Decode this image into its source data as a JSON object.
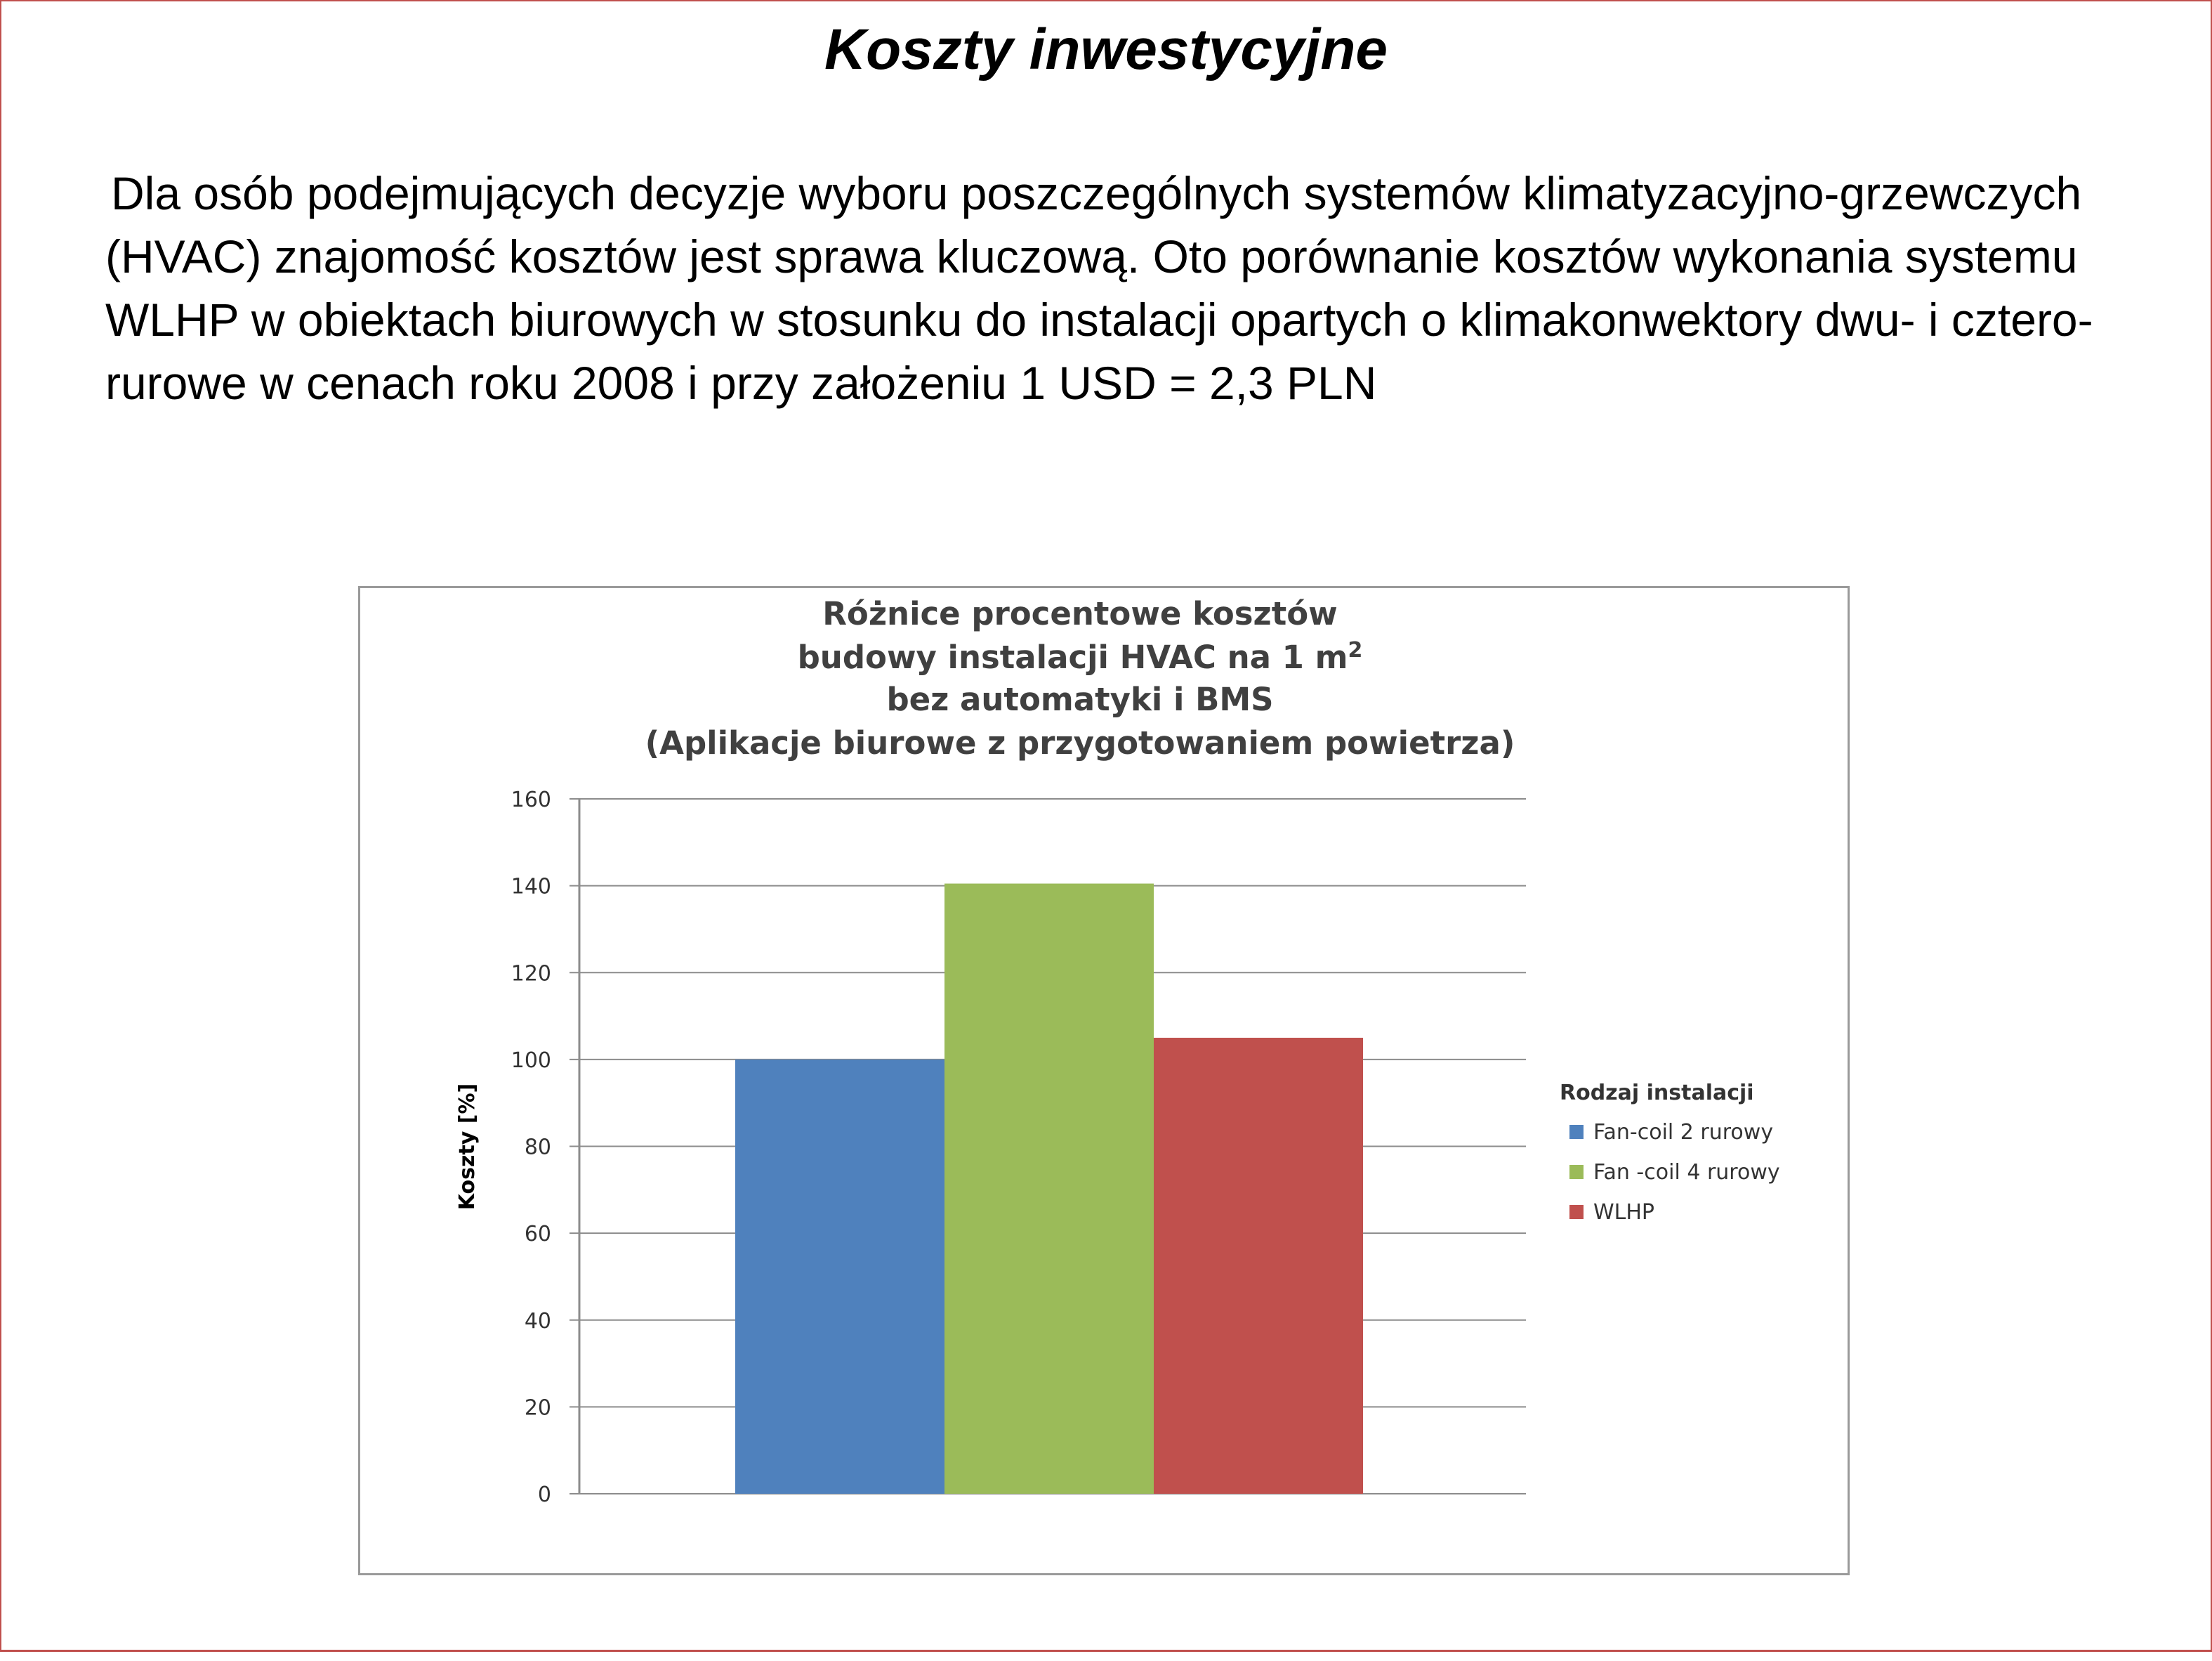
{
  "slide": {
    "title": "Koszty inwestycyjne",
    "body": "Dla osób podejmujących decyzje wyboru poszczególnych systemów klimatyzacyjno-grzewczych (HVAC) znajomość kosztów jest sprawa kluczową. Oto porównanie kosztów wykonania systemu WLHP w obiektach biurowych w stosunku do instalacji opartych o klimakonwektory dwu- i cztero-rurowe w cenach roku 2008 i przy założeniu 1 USD = 2,3 PLN"
  },
  "chart_data": {
    "type": "bar",
    "title_lines": [
      "Różnice procentowe kosztów",
      "budowy instalacji HVAC na 1 m",
      "bez automatyki  i BMS",
      "(Aplikacje biurowe z przygotowaniem powietrza)"
    ],
    "title_superscript": "2",
    "ylabel": "Koszty [%]",
    "xlabel": "",
    "ylim": [
      0,
      160
    ],
    "yticks": [
      "0",
      "20",
      "40",
      "60",
      "80",
      "100",
      "120",
      "140",
      "160"
    ],
    "grid": true,
    "legend_title": "Rodzaj instalacji",
    "legend_position": "right",
    "series": [
      {
        "name": "Fan-coil 2 rurowy",
        "value": 100,
        "color": "#4f81bd"
      },
      {
        "name": "Fan -coil 4 rurowy",
        "value": 140.5,
        "color": "#9bbb59"
      },
      {
        "name": "WLHP",
        "value": 105,
        "color": "#c0504d"
      }
    ]
  }
}
